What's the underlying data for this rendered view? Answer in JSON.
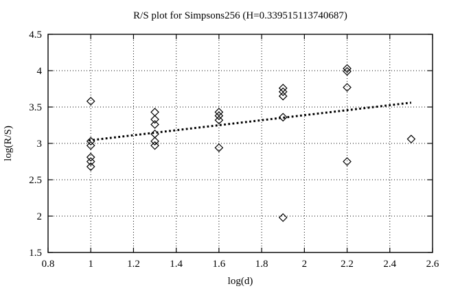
{
  "figure": {
    "background": "#ffffff",
    "foreground": "#000000"
  },
  "chart_data": {
    "type": "scatter",
    "title": "R/S plot for Simpsons256 (H=0.339515113740687)",
    "xlabel": "log(d)",
    "ylabel": "log(R/S)",
    "H": 0.339515113740687,
    "xlim": [
      0.8,
      2.6
    ],
    "ylim": [
      1.5,
      4.5
    ],
    "grid": true,
    "legend": "none",
    "marker": "open-diamond",
    "xticks": {
      "values": [
        0.8,
        1,
        1.2,
        1.4,
        1.6,
        1.8,
        2,
        2.2,
        2.4,
        2.6
      ],
      "labels": [
        "0.8",
        "1",
        "1.2",
        "1.4",
        "1.6",
        "1.8",
        "2",
        "2.2",
        "2.4",
        "2.6"
      ]
    },
    "yticks": {
      "values": [
        1.5,
        2,
        2.5,
        3,
        3.5,
        4,
        4.5
      ],
      "labels": [
        "1.5",
        "2",
        "2.5",
        "3",
        "3.5",
        "4",
        "4.5"
      ]
    },
    "points": [
      [
        1.0,
        3.58
      ],
      [
        1.0,
        3.03
      ],
      [
        1.0,
        2.97
      ],
      [
        1.0,
        2.81
      ],
      [
        1.0,
        2.75
      ],
      [
        1.0,
        2.68
      ],
      [
        1.3,
        3.43
      ],
      [
        1.3,
        3.33
      ],
      [
        1.3,
        3.26
      ],
      [
        1.3,
        3.13
      ],
      [
        1.3,
        3.03
      ],
      [
        1.3,
        2.97
      ],
      [
        1.6,
        3.43
      ],
      [
        1.6,
        3.38
      ],
      [
        1.6,
        3.32
      ],
      [
        1.6,
        2.94
      ],
      [
        1.9,
        3.76
      ],
      [
        1.9,
        3.71
      ],
      [
        1.9,
        3.65
      ],
      [
        1.9,
        3.36
      ],
      [
        1.9,
        1.98
      ],
      [
        2.2,
        4.03
      ],
      [
        2.2,
        3.99
      ],
      [
        2.2,
        3.77
      ],
      [
        2.2,
        2.75
      ],
      [
        2.5,
        3.06
      ]
    ],
    "trend_line": {
      "style": "bold-dotted",
      "x1": 0.99,
      "y1": 3.04,
      "x2": 2.5,
      "y2": 3.56
    }
  }
}
